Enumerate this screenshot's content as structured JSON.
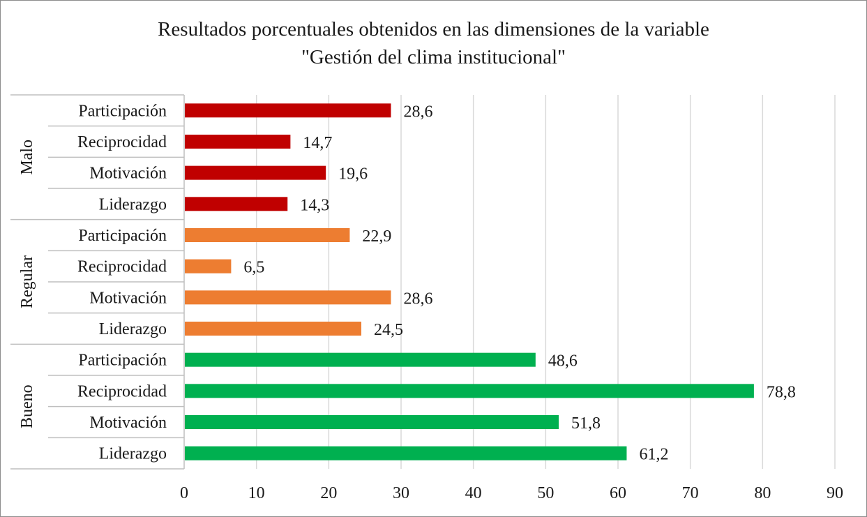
{
  "chart_data": {
    "type": "bar",
    "orientation": "horizontal",
    "title": [
      "Resultados porcentuales obtenidos en las dimensiones de la variable",
      "\"Gestión del clima institucional\""
    ],
    "xlabel": "",
    "ylabel": "",
    "xlim": [
      0,
      90
    ],
    "x_ticks": [
      0,
      10,
      20,
      30,
      40,
      50,
      60,
      70,
      80,
      90
    ],
    "grid": true,
    "legend": "none",
    "groups": [
      {
        "name": "Malo",
        "color": "#c00000",
        "items": [
          {
            "label": "Participación",
            "value": 28.6,
            "value_text": "28,6"
          },
          {
            "label": "Reciprocidad",
            "value": 14.7,
            "value_text": "14,7"
          },
          {
            "label": "Motivación",
            "value": 19.6,
            "value_text": "19,6"
          },
          {
            "label": "Liderazgo",
            "value": 14.3,
            "value_text": "14,3"
          }
        ]
      },
      {
        "name": "Regular",
        "color": "#ed7d31",
        "items": [
          {
            "label": "Participación",
            "value": 22.9,
            "value_text": "22,9"
          },
          {
            "label": "Reciprocidad",
            "value": 6.5,
            "value_text": "6,5"
          },
          {
            "label": "Motivación",
            "value": 28.6,
            "value_text": "28,6"
          },
          {
            "label": "Liderazgo",
            "value": 24.5,
            "value_text": "24,5"
          }
        ]
      },
      {
        "name": "Bueno",
        "color": "#00b050",
        "items": [
          {
            "label": "Participación",
            "value": 48.6,
            "value_text": "48,6"
          },
          {
            "label": "Reciprocidad",
            "value": 78.8,
            "value_text": "78,8"
          },
          {
            "label": "Motivación",
            "value": 51.8,
            "value_text": "51,8"
          },
          {
            "label": "Liderazgo",
            "value": 61.2,
            "value_text": "61,2"
          }
        ]
      }
    ]
  },
  "colors": {
    "gridline": "#d9d9d9",
    "axis": "#bfbfbf",
    "text": "#1a1a1a"
  }
}
